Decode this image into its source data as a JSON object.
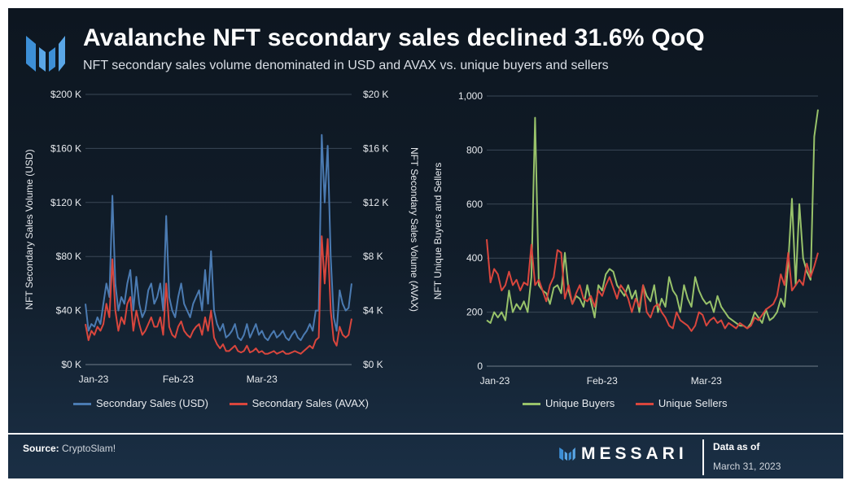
{
  "header": {
    "title": "Avalanche NFT secondary sales declined 31.6% QoQ",
    "subtitle": "NFT secondary sales volume denominated in USD and AVAX vs. unique buyers and sellers"
  },
  "footer": {
    "source_label": "Source:",
    "source_value": "CryptoSlam!",
    "brand": "MESSARI",
    "asof_label": "Data as of",
    "asof_date": "March 31, 2023"
  },
  "colors": {
    "usd": "#4b7bb2",
    "avax": "#d9463d",
    "buyers": "#98c26a",
    "sellers": "#d9463d",
    "grid": "#3a4756",
    "text": "#e7eaee"
  },
  "chart_data": [
    {
      "type": "line",
      "title": "Secondary sales volume",
      "x_ticks": [
        "Jan-23",
        "Feb-23",
        "Mar-23"
      ],
      "x_tick_days": [
        0,
        31,
        59
      ],
      "x_range": [
        0,
        89
      ],
      "ylabel_left": "NFT Secondary Sales Volume (USD)",
      "ylabel_right": "NFT Secondary Sales Volume (AVAX)",
      "ylim_left": [
        0,
        200000
      ],
      "ylim_right": [
        0,
        20000
      ],
      "yticks_left": [
        "$0 K",
        "$40 K",
        "$80 K",
        "$120 K",
        "$160 K",
        "$200 K"
      ],
      "yticks_right": [
        "$0 K",
        "$4 K",
        "$8 K",
        "$12 K",
        "$16 K",
        "$20 K"
      ],
      "grid": true,
      "legend": "bottom",
      "series": [
        {
          "name": "Secondary Sales (USD)",
          "axis": "left",
          "values": [
            45000,
            25000,
            30000,
            28000,
            35000,
            30000,
            45000,
            60000,
            50000,
            125000,
            60000,
            40000,
            50000,
            45000,
            60000,
            70000,
            40000,
            65000,
            45000,
            35000,
            40000,
            55000,
            60000,
            45000,
            50000,
            60000,
            40000,
            110000,
            50000,
            40000,
            35000,
            50000,
            60000,
            45000,
            40000,
            35000,
            45000,
            50000,
            55000,
            40000,
            70000,
            45000,
            84000,
            40000,
            30000,
            25000,
            30000,
            20000,
            22000,
            25000,
            30000,
            20000,
            18000,
            22000,
            30000,
            20000,
            25000,
            30000,
            22000,
            25000,
            20000,
            18000,
            22000,
            25000,
            20000,
            22000,
            25000,
            20000,
            18000,
            22000,
            25000,
            20000,
            18000,
            22000,
            25000,
            30000,
            25000,
            40000,
            40000,
            170000,
            120000,
            162000,
            80000,
            35000,
            25000,
            55000,
            45000,
            40000,
            42000,
            60000
          ]
        },
        {
          "name": "Secondary Sales (AVAX)",
          "axis": "right",
          "values": [
            3000,
            1800,
            2500,
            2200,
            2800,
            2500,
            3000,
            4500,
            3500,
            7800,
            4000,
            2500,
            3500,
            3000,
            4500,
            5000,
            2500,
            4000,
            3000,
            2200,
            2500,
            3000,
            3500,
            2800,
            2800,
            3500,
            2200,
            6000,
            2800,
            2200,
            2000,
            2800,
            3200,
            2500,
            2200,
            2000,
            2500,
            2800,
            3000,
            2200,
            3500,
            2500,
            4000,
            2000,
            1500,
            1200,
            1500,
            1000,
            1000,
            1200,
            1400,
            1000,
            900,
            1000,
            1400,
            900,
            1000,
            1200,
            900,
            1000,
            800,
            800,
            900,
            1000,
            800,
            900,
            1000,
            800,
            800,
            900,
            1000,
            900,
            800,
            1000,
            1200,
            1400,
            1200,
            1800,
            2000,
            9500,
            6000,
            9300,
            4000,
            1800,
            1400,
            2800,
            2200,
            2000,
            2200,
            3400
          ]
        }
      ]
    },
    {
      "type": "line",
      "title": "Unique buyers and sellers",
      "x_ticks": [
        "Jan-23",
        "Feb-23",
        "Mar-23"
      ],
      "x_tick_days": [
        0,
        31,
        59
      ],
      "x_range": [
        0,
        89
      ],
      "ylabel": "NFT Unique Buyers and Sellers",
      "ylim": [
        0,
        1000
      ],
      "yticks": [
        "0",
        "200",
        "400",
        "600",
        "800",
        "1,000"
      ],
      "grid": true,
      "legend": "bottom",
      "series": [
        {
          "name": "Unique Buyers",
          "values": [
            170,
            160,
            200,
            180,
            200,
            170,
            280,
            200,
            230,
            210,
            240,
            200,
            330,
            920,
            300,
            280,
            270,
            230,
            290,
            300,
            270,
            420,
            280,
            230,
            260,
            250,
            220,
            300,
            240,
            180,
            300,
            280,
            340,
            360,
            350,
            300,
            280,
            260,
            300,
            250,
            280,
            200,
            300,
            260,
            240,
            300,
            200,
            250,
            220,
            330,
            280,
            260,
            200,
            300,
            250,
            220,
            330,
            280,
            250,
            230,
            240,
            200,
            260,
            220,
            200,
            180,
            170,
            160,
            150,
            150,
            140,
            160,
            200,
            180,
            160,
            210,
            170,
            180,
            200,
            250,
            220,
            380,
            620,
            300,
            600,
            400,
            350,
            320,
            850,
            950
          ]
        },
        {
          "name": "Unique Sellers",
          "values": [
            470,
            310,
            360,
            340,
            280,
            300,
            350,
            300,
            320,
            280,
            310,
            300,
            450,
            300,
            320,
            280,
            240,
            300,
            330,
            430,
            420,
            250,
            300,
            230,
            270,
            300,
            250,
            240,
            260,
            220,
            280,
            260,
            300,
            330,
            290,
            250,
            300,
            280,
            250,
            200,
            250,
            220,
            300,
            200,
            180,
            220,
            230,
            200,
            180,
            150,
            140,
            200,
            170,
            160,
            150,
            130,
            150,
            200,
            190,
            150,
            170,
            180,
            160,
            170,
            140,
            160,
            150,
            140,
            160,
            150,
            140,
            150,
            180,
            170,
            190,
            210,
            220,
            230,
            260,
            340,
            300,
            420,
            280,
            300,
            320,
            300,
            380,
            330,
            370,
            420
          ]
        }
      ]
    }
  ]
}
